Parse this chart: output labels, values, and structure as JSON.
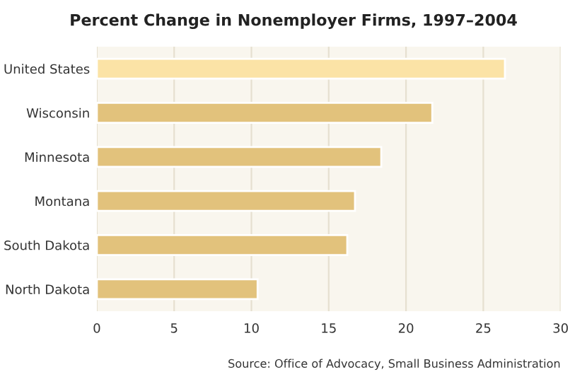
{
  "chart_data": {
    "type": "bar",
    "orientation": "horizontal",
    "title": "Percent Change in Nonemployer Firms, 1997–2004",
    "categories": [
      "United States",
      "Wisconsin",
      "Minnesota",
      "Montana",
      "South Dakota",
      "North Dakota"
    ],
    "values": [
      26.4,
      21.7,
      18.4,
      16.7,
      16.2,
      10.4
    ],
    "colors": [
      "#fbe3a6",
      "#e2c27c",
      "#e2c27c",
      "#e2c27c",
      "#e2c27c",
      "#e2c27c"
    ],
    "xlim": [
      0,
      30
    ],
    "xticks": [
      0,
      5,
      10,
      15,
      20,
      25,
      30
    ],
    "grid": "x",
    "annotations": [
      "Source: Office of Advocacy, Small Business Administration"
    ]
  }
}
